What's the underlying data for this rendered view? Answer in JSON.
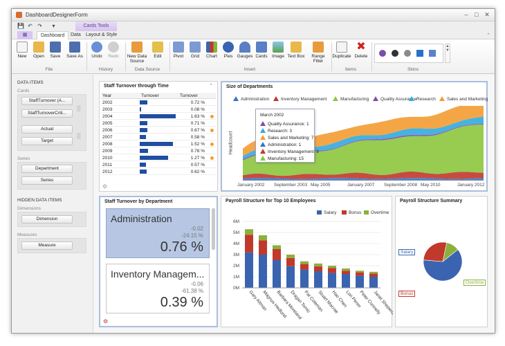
{
  "window": {
    "title": "DashboardDesignerForm"
  },
  "qat": {
    "icons": [
      "save-icon",
      "undo-icon",
      "redo-icon",
      "customize-icon"
    ]
  },
  "contextual_tab": "Cards Tools",
  "tabs": [
    "Dashboard",
    "Data",
    "Layout & Style"
  ],
  "ribbon": {
    "file_group": {
      "label": "File",
      "buttons": [
        "New",
        "Open",
        "Save",
        "Save As"
      ]
    },
    "history_group": {
      "label": "History",
      "buttons": [
        "Undo",
        "Redo"
      ]
    },
    "datasource_group": {
      "label": "Data Source",
      "buttons": [
        "New Data Source",
        "Edit"
      ]
    },
    "insert_group": {
      "label": "Insert",
      "buttons": [
        "Pivot",
        "Grid",
        "Chart",
        "Pies",
        "Gauges",
        "Cards",
        "Image",
        "Text Box",
        "Range Filter"
      ]
    },
    "items_group": {
      "label": "Items",
      "buttons": [
        "Duplicate",
        "Delete"
      ]
    },
    "skins_group": {
      "label": "Skins"
    }
  },
  "left_panel": {
    "data_items_header": "DATA ITEMS",
    "cards_label": "Cards",
    "cards_items": [
      "StaffTurnover (A...",
      "StaffTurnoverCriti..."
    ],
    "card_fields": [
      "Actual",
      "Target"
    ],
    "series_label": "Series",
    "series_items": [
      "Department",
      "Series"
    ],
    "hidden_header": "HIDDEN DATA ITEMS",
    "dimensions_label": "Dimensions",
    "dimension_item": "Dimension",
    "measures_label": "Measures",
    "measure_item": "Measure"
  },
  "turnover_grid": {
    "title": "Staff Turnover through Time",
    "headers": [
      "Year",
      "Turnover",
      "Turnover"
    ],
    "rows": [
      {
        "year": "2002",
        "value": "0.72 %",
        "fraction": 0.22,
        "flag": false
      },
      {
        "year": "2003",
        "value": "0.08 %",
        "fraction": 0.03,
        "flag": false
      },
      {
        "year": "2004",
        "value": "1.63 %",
        "fraction": 1.0,
        "flag": true
      },
      {
        "year": "2005",
        "value": "0.71 %",
        "fraction": 0.22,
        "flag": false
      },
      {
        "year": "2006",
        "value": "0.67 %",
        "fraction": 0.21,
        "flag": true
      },
      {
        "year": "2007",
        "value": "0.58 %",
        "fraction": 0.18,
        "flag": false
      },
      {
        "year": "2008",
        "value": "1.52 %",
        "fraction": 0.92,
        "flag": true
      },
      {
        "year": "2009",
        "value": "0.78 %",
        "fraction": 0.23,
        "flag": false
      },
      {
        "year": "2010",
        "value": "1.27 %",
        "fraction": 0.78,
        "flag": true
      },
      {
        "year": "2011",
        "value": "0.57 %",
        "fraction": 0.17,
        "flag": false
      },
      {
        "year": "2012",
        "value": "0.62 %",
        "fraction": 0.19,
        "flag": false
      }
    ]
  },
  "departments_chart": {
    "title": "Size of Departments",
    "legend": [
      {
        "name": "Administration",
        "color": "#3a73c8"
      },
      {
        "name": "Inventory Management",
        "color": "#c0392b"
      },
      {
        "name": "Manufacturing",
        "color": "#8cc63e"
      },
      {
        "name": "Quality Assurance",
        "color": "#7b4fa8"
      },
      {
        "name": "Research",
        "color": "#33aadd"
      },
      {
        "name": "Sales and Marketing",
        "color": "#f39c33"
      }
    ],
    "ylabel": "Headcount",
    "x_ticks": [
      "January 2002",
      "September 2003",
      "May 2005",
      "January 2007",
      "September 2008",
      "May 2010",
      "January 2012"
    ],
    "tooltip": {
      "title": "March 2002",
      "lines": [
        {
          "text": "Quality Assurance: 1",
          "color": "#7b4fa8"
        },
        {
          "text": "Research: 3",
          "color": "#33aadd"
        },
        {
          "text": "Sales and Marketing: 7",
          "color": "#f39c33"
        },
        {
          "text": "Administration: 1",
          "color": "#3a73c8"
        },
        {
          "text": "Inventory Management: 3",
          "color": "#c0392b"
        },
        {
          "text": "Manufacturing: 15",
          "color": "#8cc63e"
        }
      ]
    }
  },
  "turnover_cards": {
    "title": "Staff Turnover by Department",
    "cards": [
      {
        "name": "Administration",
        "delta1": "-0.02",
        "delta2": "-24.15 %",
        "main": "0.76 %"
      },
      {
        "name": "Inventory Managem...",
        "delta1": "-0.06",
        "delta2": "-61.38 %",
        "main": "0.39 %"
      }
    ]
  },
  "payroll_chart": {
    "title": "Payroll Structure for Top 10 Employees",
    "legend": [
      {
        "name": "Salary",
        "color": "#3a64b0"
      },
      {
        "name": "Bonus",
        "color": "#c0392b"
      },
      {
        "name": "Overtime",
        "color": "#8cb03e"
      }
    ],
    "y_ticks": [
      "0M",
      "1M",
      "2M",
      "3M",
      "4M",
      "5M",
      "6M"
    ]
  },
  "chart_data": [
    {
      "type": "bar",
      "title": "Payroll Structure for Top 10 Employees",
      "categories": [
        "Gary Altman",
        "Magnus Hedlund",
        "Barbara Moreland",
        "Dragan Tomic",
        "Pat Coleman",
        "Stuart Macrae",
        "Hao Chen",
        "Lori Penor",
        "Peter Connelly",
        "Janet Sheperdigian"
      ],
      "series": [
        {
          "name": "Salary",
          "values": [
            3.2,
            3.0,
            2.5,
            1.95,
            1.65,
            1.5,
            1.35,
            1.25,
            1.1,
            1.0
          ]
        },
        {
          "name": "Bonus",
          "values": [
            1.6,
            1.3,
            1.0,
            0.75,
            0.5,
            0.45,
            0.45,
            0.3,
            0.3,
            0.3
          ]
        },
        {
          "name": "Overtime",
          "values": [
            0.5,
            0.45,
            0.35,
            0.3,
            0.25,
            0.25,
            0.2,
            0.2,
            0.15,
            0.15
          ]
        }
      ],
      "ylim": [
        0,
        6
      ]
    },
    {
      "type": "pie",
      "title": "Payroll Structure Summary",
      "categories": [
        "Salary",
        "Bonus",
        "Overtime"
      ],
      "values": [
        62,
        27,
        11
      ]
    }
  ],
  "pie_chart": {
    "title": "Payroll Structure Summary",
    "labels": [
      "Salary",
      "Bonus",
      "Overtime"
    ],
    "colors": [
      "#3a64b0",
      "#c0392b",
      "#8cb03e"
    ]
  }
}
